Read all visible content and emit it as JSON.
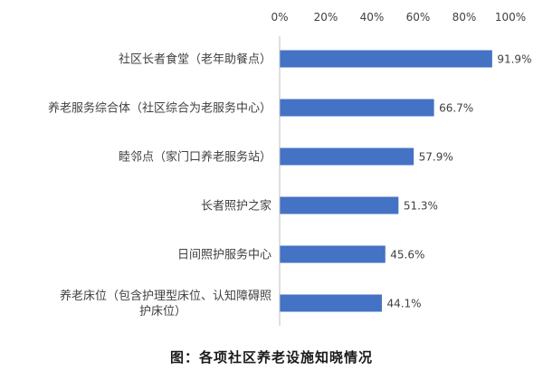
{
  "chart_data": {
    "type": "bar",
    "orientation": "horizontal",
    "categories": [
      [
        "社区长者食堂（老年助餐点）"
      ],
      [
        "养老服务综合体（社区综合为老服务中心）"
      ],
      [
        "睦邻点（家门口养老服务站）"
      ],
      [
        "长者照护之家"
      ],
      [
        "日间照护服务中心"
      ],
      [
        "养老床位（包含护理型床位、认知障碍照",
        "护床位）"
      ]
    ],
    "values": [
      91.9,
      66.7,
      57.9,
      51.3,
      45.6,
      44.1
    ],
    "value_labels": [
      "91.9%",
      "66.7%",
      "57.9%",
      "51.3%",
      "45.6%",
      "44.1%"
    ],
    "x_ticks": [
      "0%",
      "20%",
      "40%",
      "60%",
      "80%",
      "100%"
    ],
    "xlim": [
      0,
      100
    ],
    "x_axis_position": "top",
    "grid": false,
    "bar_color": "#4472c4",
    "caption": "图：各项社区养老设施知晓情况"
  }
}
